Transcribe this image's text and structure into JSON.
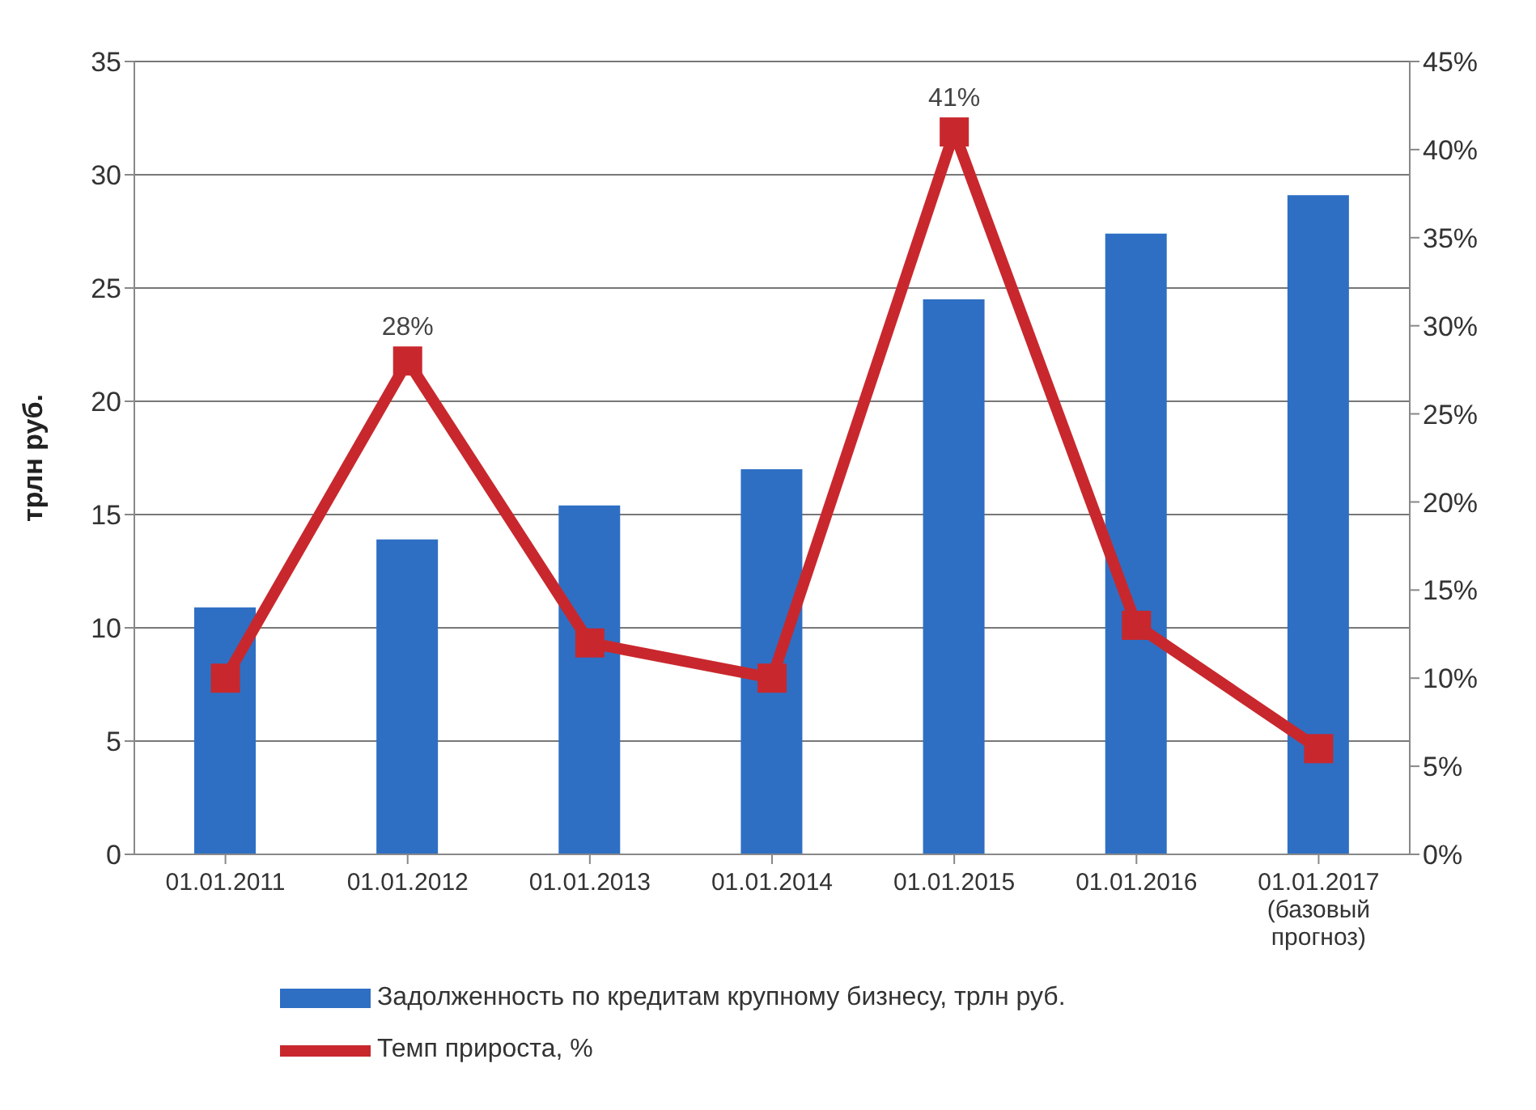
{
  "chart_data": {
    "type": "bar",
    "categories": [
      "01.01.2011",
      "01.01.2012",
      "01.01.2013",
      "01.01.2014",
      "01.01.2015",
      "01.01.2016",
      "01.01.2017\n(базовый\nпрогноз)"
    ],
    "series": [
      {
        "name": "Задолженность по кредитам крупному бизнесу, трлн руб.",
        "color": "#2e6fc4",
        "values": [
          10.9,
          13.9,
          15.4,
          17.0,
          24.5,
          27.4,
          29.1
        ]
      },
      {
        "name": "Темп прироста, %",
        "type": "line",
        "axis": "y2",
        "color": "#c8282d",
        "marker": "square",
        "values": [
          10,
          28,
          12,
          10,
          41,
          13,
          6
        ],
        "value_labels": [
          null,
          "28%",
          null,
          null,
          "41%",
          null,
          null
        ]
      }
    ],
    "ylabel": "трлн руб.",
    "ylim": [
      0,
      35
    ],
    "yticks": [
      0,
      5,
      10,
      15,
      20,
      25,
      30,
      35
    ],
    "y2lim": [
      0,
      45
    ],
    "y2ticks": [
      {
        "value": 0,
        "label": "0%"
      },
      {
        "value": 5,
        "label": "5%"
      },
      {
        "value": 10,
        "label": "10%"
      },
      {
        "value": 15,
        "label": "15%"
      },
      {
        "value": 20,
        "label": "20%"
      },
      {
        "value": 25,
        "label": "25%"
      },
      {
        "value": 30,
        "label": "30%"
      },
      {
        "value": 35,
        "label": "35%"
      },
      {
        "value": 40,
        "label": "40%"
      },
      {
        "value": 45,
        "label": "45%"
      }
    ],
    "grid": "y",
    "legend": "bottom"
  }
}
